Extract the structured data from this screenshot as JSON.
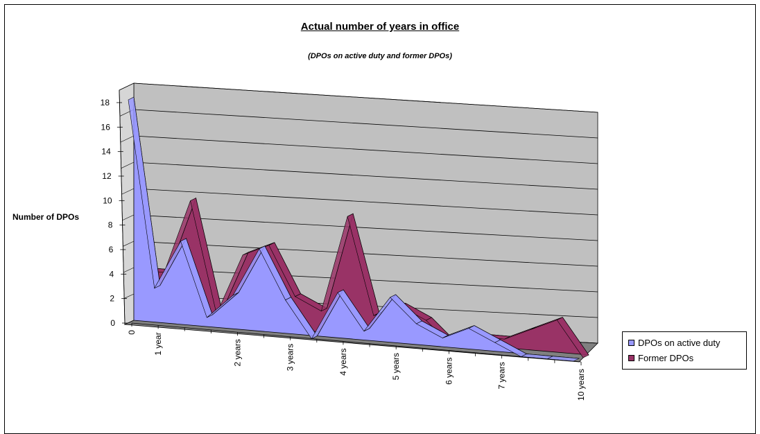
{
  "chart_data": {
    "type": "area",
    "style": "3d-area",
    "title": "Actual number of years in office",
    "subtitle": "(DPOs on active duty and former DPOs)",
    "ylabel": "Number of DPOs",
    "xlabel": "",
    "ylim": [
      0,
      18
    ],
    "yticks": [
      0,
      2,
      4,
      6,
      8,
      10,
      12,
      14,
      16,
      18
    ],
    "grid": true,
    "legend_position": "right",
    "categories": [
      "0",
      "1 year",
      "",
      "",
      "2 years",
      "",
      "3 years",
      "",
      "4 years",
      "",
      "5 years",
      "",
      "6 years",
      "",
      "7 years",
      "",
      "",
      "10 years"
    ],
    "category_tick_labels": [
      "0",
      "1 year",
      "2 years",
      "3 years",
      "4 years",
      "5 years",
      "6 years",
      "7 years",
      "10 years"
    ],
    "series": [
      {
        "name": "DPOs on active duty",
        "color": "#9999ff",
        "values": [
          18,
          3,
          7,
          1,
          3,
          7,
          3,
          0,
          4,
          1,
          4,
          2,
          1,
          2,
          1,
          0,
          0,
          0
        ]
      },
      {
        "name": "Former DPOs",
        "color": "#993366",
        "values": [
          4,
          4,
          10,
          1,
          6,
          7,
          3,
          2,
          10,
          2,
          3,
          2,
          0,
          1,
          1,
          2,
          3,
          0
        ]
      }
    ]
  }
}
